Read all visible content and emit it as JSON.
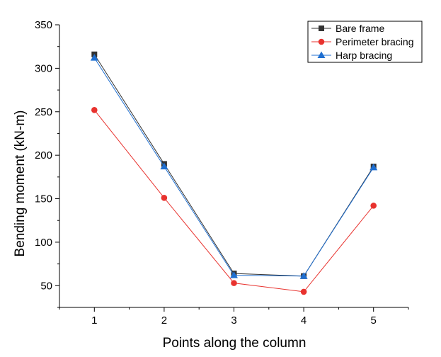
{
  "chart_data": {
    "type": "line",
    "title": "",
    "xlabel": "Points along the column",
    "ylabel": "Bending moment (kN-m)",
    "x": [
      1,
      2,
      3,
      4,
      5
    ],
    "xlim": [
      0.5,
      5.5
    ],
    "ylim": [
      25,
      350
    ],
    "yticks": [
      50,
      100,
      150,
      200,
      250,
      300,
      350
    ],
    "xticks": [
      1,
      2,
      3,
      4,
      5
    ],
    "grid": false,
    "legend_position": "top-right",
    "series": [
      {
        "name": "Bare frame",
        "values": [
          316,
          190,
          64,
          61,
          187
        ],
        "color": "#333333",
        "marker": "square"
      },
      {
        "name": "Perimeter bracing",
        "values": [
          252,
          151,
          53,
          43,
          142
        ],
        "color": "#e8322e",
        "marker": "circle"
      },
      {
        "name": "Harp bracing",
        "values": [
          312,
          187,
          62,
          61,
          186
        ],
        "color": "#1f6fd1",
        "marker": "triangle"
      }
    ]
  }
}
